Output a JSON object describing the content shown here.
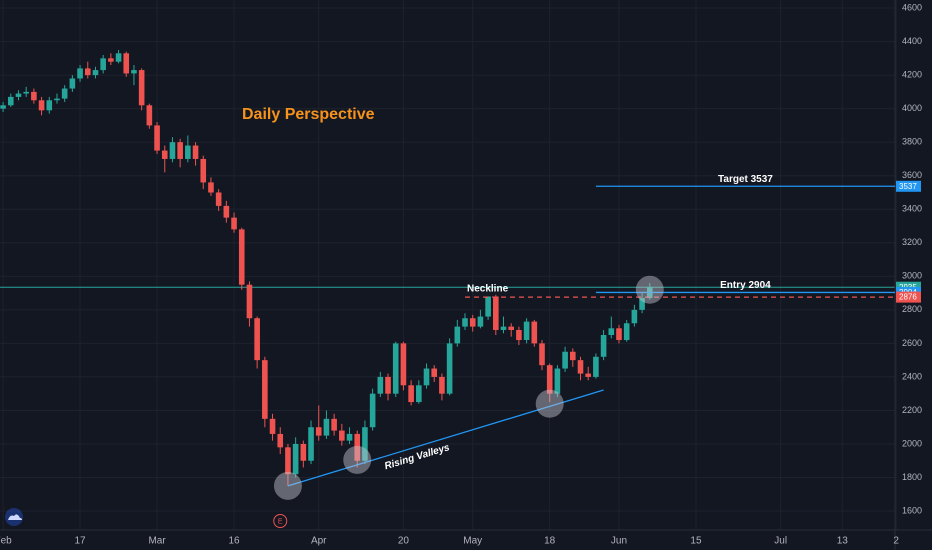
{
  "chart_data": {
    "type": "candlestick",
    "title": "Daily Perspective",
    "xlim": [
      -0.4,
      116.5
    ],
    "ylim": [
      1487,
      4648
    ],
    "xticks": [
      {
        "value": 0,
        "label": "Feb"
      },
      {
        "value": 10,
        "label": "17"
      },
      {
        "value": 20,
        "label": "Mar"
      },
      {
        "value": 30,
        "label": "16"
      },
      {
        "value": 41,
        "label": "Apr"
      },
      {
        "value": 52,
        "label": "20"
      },
      {
        "value": 61,
        "label": "May"
      },
      {
        "value": 71,
        "label": "18"
      },
      {
        "value": 80,
        "label": "Jun"
      },
      {
        "value": 90,
        "label": "15"
      },
      {
        "value": 101,
        "label": "Jul"
      },
      {
        "value": 109,
        "label": "13"
      },
      {
        "value": 116,
        "label": "2"
      }
    ],
    "yticks": [
      1600,
      1800,
      2000,
      2200,
      2400,
      2600,
      2800,
      3000,
      3200,
      3400,
      3600,
      3800,
      4000,
      4200,
      4400,
      4600
    ],
    "grid": true,
    "up_color": "#26a69a",
    "down_color": "#ef5350",
    "series": [
      {
        "x": [
          0,
          1,
          2,
          3,
          4,
          5,
          6,
          7,
          8,
          9,
          10,
          11,
          12,
          13,
          14,
          15,
          16,
          17,
          18,
          19,
          20,
          21,
          22,
          23,
          24,
          25,
          26,
          27,
          28,
          29,
          30,
          31,
          32,
          33,
          34,
          35,
          36,
          37,
          38,
          39,
          40,
          41,
          42,
          43,
          44,
          45,
          46,
          47,
          48,
          49,
          50,
          51,
          52,
          53,
          54,
          55,
          56,
          57,
          58,
          59,
          60,
          61,
          62,
          63,
          64,
          65,
          66,
          67,
          68,
          69,
          70,
          71,
          72,
          73,
          74,
          75,
          76,
          77,
          78,
          79,
          80,
          81,
          82,
          83,
          84
        ],
        "open": [
          4000,
          4020,
          4070,
          4090,
          4100,
          4050,
          3990,
          4050,
          4060,
          4120,
          4180,
          4240,
          4200,
          4230,
          4300,
          4280,
          4330,
          4210,
          4230,
          4020,
          3900,
          3750,
          3700,
          3800,
          3700,
          3780,
          3700,
          3560,
          3500,
          3420,
          3350,
          3280,
          2950,
          2750,
          2500,
          2150,
          2060,
          1980,
          1820,
          2000,
          1900,
          2100,
          2050,
          2150,
          2080,
          2020,
          2060,
          1900,
          2100,
          2300,
          2400,
          2300,
          2600,
          2350,
          2250,
          2350,
          2450,
          2400,
          2300,
          2600,
          2700,
          2750,
          2700,
          2760,
          2880,
          2680,
          2700,
          2680,
          2620,
          2730,
          2600,
          2470,
          2300,
          2450,
          2550,
          2500,
          2420,
          2400,
          2520,
          2650,
          2690,
          2620,
          2720,
          2800,
          2870
        ],
        "high": [
          4040,
          4090,
          4110,
          4130,
          4120,
          4070,
          4070,
          4090,
          4140,
          4200,
          4260,
          4280,
          4250,
          4320,
          4330,
          4350,
          4340,
          4260,
          4240,
          4030,
          3920,
          3780,
          3830,
          3820,
          3840,
          3800,
          3720,
          3590,
          3520,
          3450,
          3380,
          3290,
          2970,
          2760,
          2520,
          2180,
          2100,
          2000,
          2040,
          2020,
          2140,
          2230,
          2200,
          2180,
          2120,
          2100,
          2080,
          2140,
          2330,
          2430,
          2420,
          2610,
          2610,
          2380,
          2380,
          2480,
          2470,
          2420,
          2630,
          2740,
          2780,
          2770,
          2800,
          2880,
          2890,
          2760,
          2720,
          2700,
          2750,
          2740,
          2620,
          2480,
          2470,
          2580,
          2570,
          2520,
          2460,
          2540,
          2680,
          2760,
          2710,
          2740,
          2830,
          2900,
          2960
        ],
        "low": [
          3980,
          4010,
          4050,
          4070,
          4030,
          3960,
          3970,
          4030,
          4040,
          4100,
          4160,
          4180,
          4180,
          4210,
          4260,
          4270,
          4190,
          4140,
          3990,
          3880,
          3730,
          3620,
          3680,
          3650,
          3680,
          3660,
          3520,
          3480,
          3390,
          3320,
          3260,
          2920,
          2700,
          2450,
          2100,
          2020,
          1940,
          1750,
          1800,
          1860,
          1880,
          2020,
          2030,
          2050,
          1990,
          2000,
          1860,
          1880,
          2080,
          2280,
          2260,
          2280,
          2320,
          2230,
          2240,
          2330,
          2370,
          2260,
          2290,
          2580,
          2680,
          2670,
          2690,
          2740,
          2650,
          2660,
          2640,
          2590,
          2600,
          2580,
          2440,
          2250,
          2280,
          2430,
          2460,
          2380,
          2380,
          2390,
          2500,
          2630,
          2600,
          2610,
          2700,
          2780,
          2860
        ],
        "close": [
          4020,
          4070,
          4090,
          4100,
          4050,
          3990,
          4050,
          4060,
          4120,
          4180,
          4240,
          4200,
          4230,
          4300,
          4280,
          4330,
          4210,
          4230,
          4020,
          3900,
          3750,
          3700,
          3800,
          3700,
          3780,
          3700,
          3560,
          3500,
          3420,
          3350,
          3280,
          2950,
          2750,
          2500,
          2150,
          2060,
          1980,
          1820,
          2000,
          1900,
          2100,
          2050,
          2150,
          2080,
          2020,
          2060,
          1900,
          2100,
          2300,
          2400,
          2300,
          2600,
          2350,
          2250,
          2350,
          2450,
          2400,
          2300,
          2600,
          2700,
          2750,
          2700,
          2760,
          2880,
          2680,
          2700,
          2680,
          2620,
          2730,
          2600,
          2470,
          2300,
          2450,
          2550,
          2500,
          2420,
          2400,
          2520,
          2650,
          2690,
          2620,
          2720,
          2800,
          2870,
          2935
        ]
      }
    ],
    "levels": [
      {
        "label": "Target 3537",
        "value": 3537,
        "start": 77,
        "color": "#2196f3"
      },
      {
        "label": "Entry 2904",
        "value": 2904,
        "start": 77,
        "color": "#2196f3"
      },
      {
        "label": "Neckline",
        "value": 2876,
        "start": 60,
        "color": "#ef5350",
        "dashed": true
      }
    ],
    "price_labels": [
      {
        "value": 3537,
        "color": "#2196f3"
      },
      {
        "value": 2935,
        "color": "#26a69a",
        "line": true
      },
      {
        "value": 2904,
        "color": "#2196f3"
      },
      {
        "value": 2876,
        "color": "#ef5350"
      }
    ],
    "trendline": {
      "label": "Rising Valleys",
      "color": "#2196f3",
      "x": [
        37,
        78
      ],
      "y": [
        1750,
        2322
      ]
    },
    "circles": [
      {
        "x": 37,
        "y": 1750
      },
      {
        "x": 46,
        "y": 1905
      },
      {
        "x": 71,
        "y": 2240
      },
      {
        "x": 84,
        "y": 2920
      }
    ],
    "event_marker": {
      "label": "E",
      "x": 36
    }
  }
}
